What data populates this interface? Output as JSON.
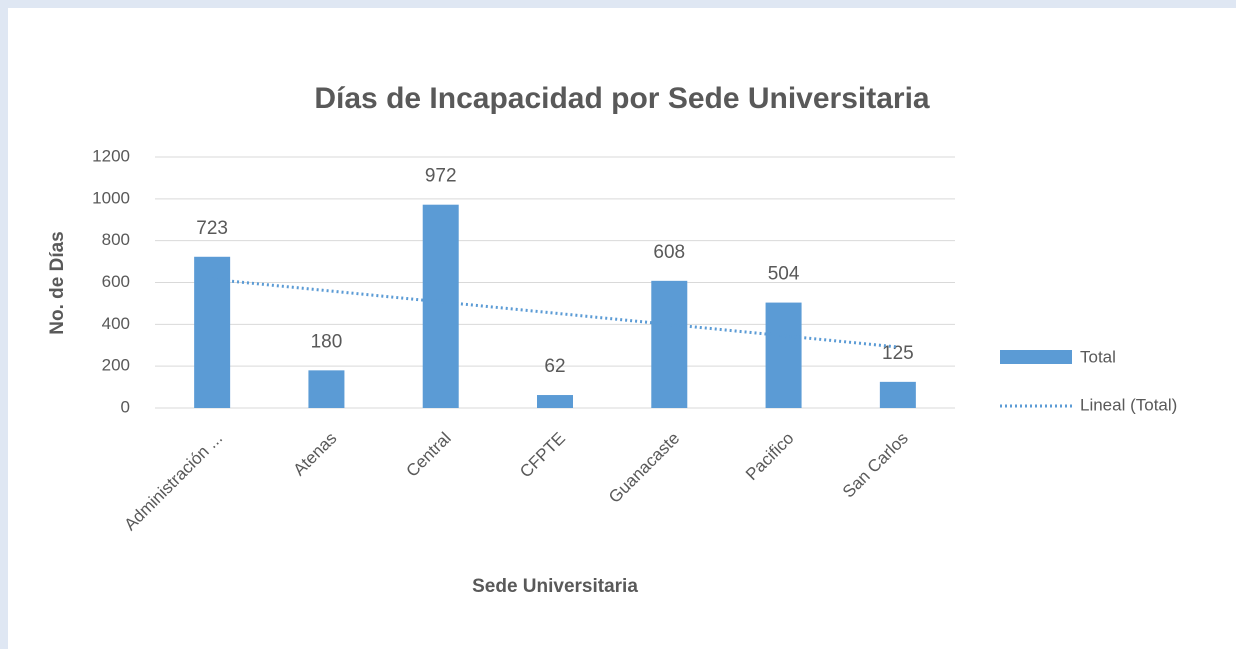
{
  "chart_data": {
    "type": "bar",
    "title": "Días de Incapacidad por Sede Universitaria",
    "x_label": "Sede Universitaria",
    "y_label": "No. de Días",
    "categories": [
      "Administración ...",
      "Atenas",
      "Central",
      "CFPTE",
      "Guanacaste",
      "Pacifico",
      "San Carlos"
    ],
    "series": [
      {
        "name": "Total",
        "color": "#5b9bd5",
        "values": [
          723,
          180,
          972,
          62,
          608,
          504,
          125
        ]
      }
    ],
    "trendline": {
      "name": "Lineal (Total)",
      "kind": "linear",
      "color": "#5b9bd5"
    },
    "ylim": [
      0,
      1200
    ],
    "yticks": [
      0,
      200,
      400,
      600,
      800,
      1000,
      1200
    ],
    "grid": true,
    "legend": "right"
  }
}
